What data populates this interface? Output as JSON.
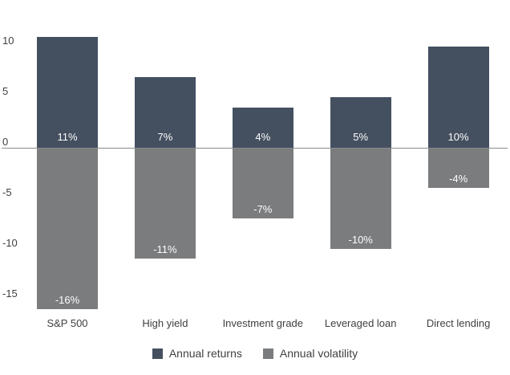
{
  "chart_data": {
    "type": "bar",
    "title": "",
    "xlabel": "",
    "ylabel": "",
    "categories": [
      "S&P 500",
      "High yield",
      "Investment grade",
      "Leveraged loan",
      "Direct lending"
    ],
    "series": [
      {
        "name": "Annual returns",
        "values": [
          11,
          7,
          4,
          5,
          10
        ],
        "labels": [
          "11%",
          "7%",
          "4%",
          "5%",
          "10%"
        ],
        "color": "#44505f"
      },
      {
        "name": "Annual volatility",
        "values": [
          -16,
          -11,
          -7,
          -10,
          -4
        ],
        "labels": [
          "-16%",
          "-11%",
          "-7%",
          "-10%",
          "-4%"
        ],
        "color": "#7a7c7e"
      }
    ],
    "yticks": [
      10,
      5,
      0,
      -5,
      -10,
      -15
    ],
    "ylim": [
      -17.5,
      11.5
    ],
    "grid": false,
    "zero_line_color": "#8a8a8a",
    "axis_text_color": "#404040",
    "value_label_color": "#fdfdfd",
    "legend_position": "bottom"
  }
}
